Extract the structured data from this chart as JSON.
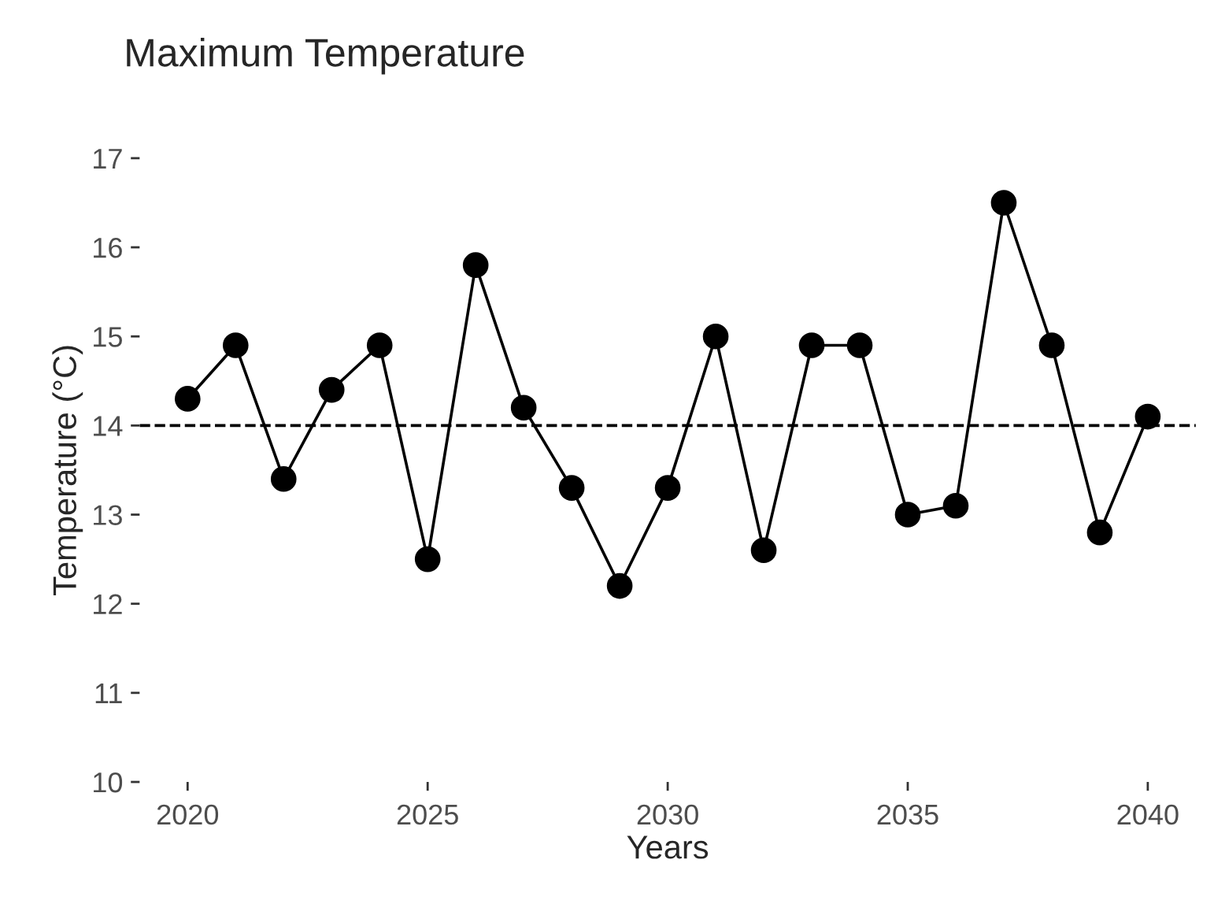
{
  "chart_data": {
    "type": "line",
    "title": "Maximum Temperature",
    "xlabel": "Years",
    "ylabel": "Temperature (°C)",
    "x": [
      2020,
      2021,
      2022,
      2023,
      2024,
      2025,
      2026,
      2027,
      2028,
      2029,
      2030,
      2031,
      2032,
      2033,
      2034,
      2035,
      2036,
      2037,
      2038,
      2039,
      2040
    ],
    "series": [
      {
        "color": "#000000",
        "values": [
          14.3,
          14.9,
          13.4,
          14.4,
          14.9,
          12.5,
          15.8,
          14.2,
          13.3,
          12.2,
          13.3,
          15.0,
          12.6,
          14.9,
          14.9,
          13.0,
          13.1,
          16.5,
          14.9,
          12.8,
          14.1
        ]
      }
    ],
    "xlim": [
      2019,
      2041
    ],
    "xticks": [
      2020,
      2025,
      2030,
      2035,
      2040
    ],
    "ylim": [
      10,
      17
    ],
    "yticks": [
      10,
      11,
      12,
      13,
      14,
      15,
      16,
      17
    ],
    "ref_lines": [
      {
        "axis": "y",
        "value": 14,
        "color": "#000000",
        "line_style": "dashed"
      }
    ],
    "marker": "circle",
    "line_style": "solid",
    "grid": false,
    "legend": false
  }
}
